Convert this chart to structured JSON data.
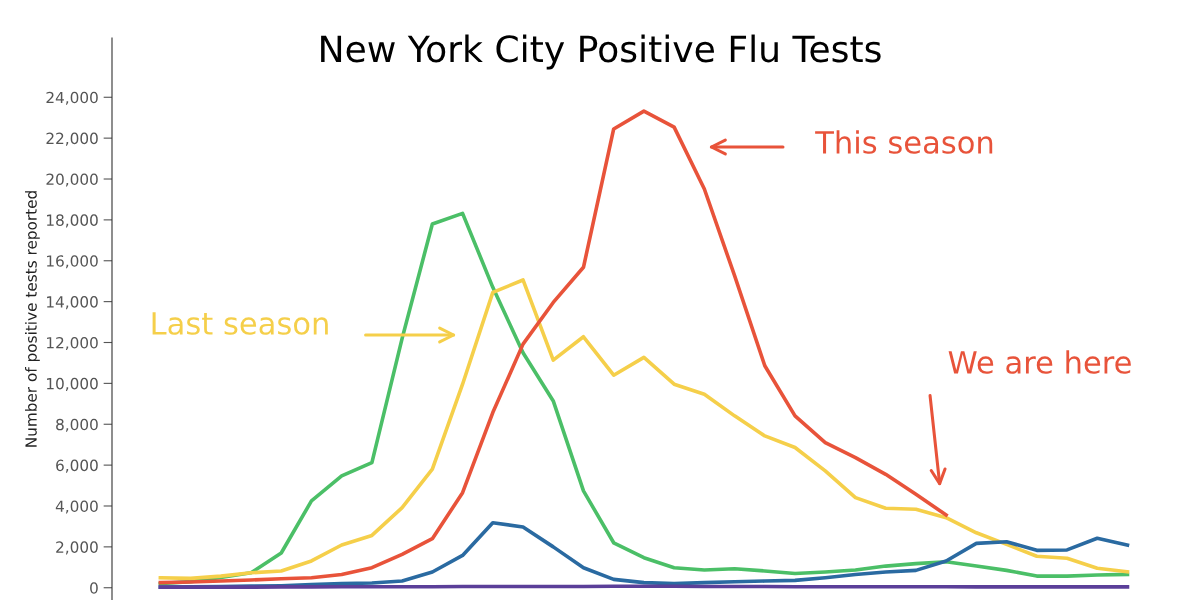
{
  "chart_data": {
    "type": "line",
    "title": "New York City Positive Flu Tests",
    "ylabel": "Number of positive tests reported",
    "categories": [
      null,
      null,
      null,
      null,
      null,
      null,
      null,
      null,
      null,
      null,
      null,
      null,
      null,
      null,
      null,
      null,
      null,
      null,
      null,
      null,
      null,
      null,
      null,
      null,
      null,
      null,
      null,
      null,
      null,
      null,
      null,
      null,
      null
    ],
    "series": [
      {
        "color": "#4bbf67",
        "values": [
          200,
          300,
          500,
          730,
          1700,
          4250,
          5470,
          6120,
          12200,
          17800,
          18320,
          14700,
          11500,
          9140,
          4740,
          2200,
          1470,
          980,
          870,
          930,
          820,
          700,
          770,
          870,
          1060,
          1180,
          1270,
          1060,
          850,
          570,
          570,
          620,
          650
        ]
      },
      {
        "color": "#f5cf4a",
        "values": [
          490,
          460,
          570,
          730,
          820,
          1310,
          2090,
          2560,
          3920,
          5800,
          9960,
          14450,
          15060,
          11140,
          12280,
          10400,
          11270,
          9960,
          9470,
          8410,
          7430,
          6860,
          5720,
          4410,
          3890,
          3840,
          3430,
          2690,
          2120,
          1540,
          1440,
          950,
          780
        ]
      },
      {
        "color": "#2a6aa1",
        "values": [
          30,
          40,
          60,
          80,
          100,
          150,
          200,
          230,
          330,
          770,
          1580,
          3180,
          2970,
          2000,
          980,
          410,
          250,
          200,
          250,
          290,
          330,
          360,
          490,
          650,
          770,
          850,
          1310,
          2170,
          2250,
          1830,
          1850,
          2420,
          2090
        ]
      },
      {
        "color": "#5b3f99",
        "values": [
          30,
          30,
          30,
          30,
          40,
          40,
          50,
          50,
          50,
          50,
          60,
          60,
          60,
          60,
          60,
          70,
          70,
          70,
          60,
          60,
          60,
          50,
          50,
          50,
          50,
          50,
          50,
          40,
          40,
          40,
          40,
          40,
          40
        ]
      },
      {
        "color": "#e8533a",
        "values": [
          250,
          280,
          330,
          380,
          440,
          490,
          650,
          980,
          1630,
          2400,
          4650,
          8570,
          11920,
          13960,
          15680,
          22450,
          23320,
          22540,
          19510,
          15270,
          10860,
          8410,
          7100,
          6370,
          5550,
          4570,
          3560,
          null,
          null,
          null,
          null,
          null,
          null
        ]
      }
    ],
    "ylim": [
      -600,
      26900
    ],
    "yticks": [
      {
        "value": 0,
        "label": "0"
      },
      {
        "value": 2000,
        "label": "2,000"
      },
      {
        "value": 4000,
        "label": "4,000"
      },
      {
        "value": 6000,
        "label": "6,000"
      },
      {
        "value": 8000,
        "label": "8,000"
      },
      {
        "value": 10000,
        "label": "10,000"
      },
      {
        "value": 12000,
        "label": "12,000"
      },
      {
        "value": 14000,
        "label": "14,000"
      },
      {
        "value": 16000,
        "label": "16,000"
      },
      {
        "value": 18000,
        "label": "18,000"
      },
      {
        "value": 20000,
        "label": "20,000"
      },
      {
        "value": 22000,
        "label": "22,000"
      },
      {
        "value": 24000,
        "label": "24,000"
      }
    ],
    "tick_labels": "y",
    "grid": false,
    "legend": false,
    "marker": "none",
    "line_style": "solid",
    "annotations": [
      "This season",
      "Last season",
      "We are here"
    ]
  }
}
